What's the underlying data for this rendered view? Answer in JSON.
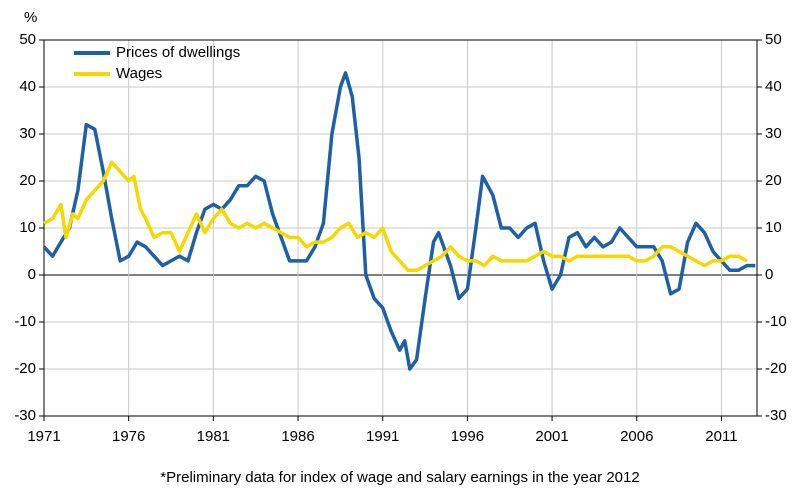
{
  "chart_data": {
    "type": "line",
    "y_label": "%",
    "footnote": "*Preliminary data for index of wage and salary earnings in the year 2012",
    "series": [
      {
        "name": "Prices of dwellings",
        "color": "#1f5fa6",
        "x": [
          1971,
          1971.5,
          1972,
          1972.5,
          1973,
          1973.5,
          1974,
          1974.5,
          1975,
          1975.5,
          1976,
          1976.5,
          1977,
          1977.5,
          1978,
          1978.5,
          1979,
          1979.5,
          1980,
          1980.5,
          1981,
          1981.5,
          1982,
          1982.5,
          1983,
          1983.5,
          1984,
          1984.5,
          1985,
          1985.5,
          1986,
          1986.5,
          1987,
          1987.5,
          1988,
          1988.5,
          1988.8,
          1989.2,
          1989.6,
          1990,
          1990.5,
          1991,
          1991.5,
          1992,
          1992.3,
          1992.6,
          1993,
          1993.5,
          1994,
          1994.3,
          1995,
          1995.5,
          1996,
          1996.5,
          1996.9,
          1997.5,
          1998,
          1998.5,
          1999,
          1999.5,
          2000,
          2000.5,
          2001,
          2001.5,
          2002,
          2002.5,
          2003,
          2003.5,
          2004,
          2004.5,
          2005,
          2005.5,
          2006,
          2006.5,
          2007,
          2007.5,
          2008,
          2008.5,
          2009,
          2009.5,
          2010,
          2010.5,
          2011,
          2011.5,
          2012,
          2012.5,
          2013
        ],
        "values": [
          6,
          4,
          7,
          10,
          18,
          32,
          31,
          22,
          12,
          3,
          4,
          7,
          6,
          4,
          2,
          3,
          4,
          3,
          9,
          14,
          15,
          14,
          16,
          19,
          19,
          21,
          20,
          13,
          8,
          3,
          3,
          3,
          6,
          11,
          30,
          40,
          43,
          38,
          25,
          0,
          -5,
          -7,
          -12,
          -16,
          -14,
          -20,
          -18,
          -5,
          7,
          9,
          2,
          -5,
          -3,
          10,
          21,
          17,
          10,
          10,
          8,
          10,
          11,
          3,
          -3,
          0,
          8,
          9,
          6,
          8,
          6,
          7,
          10,
          8,
          6,
          6,
          6,
          3,
          -4,
          -3,
          7,
          11,
          9,
          5,
          3,
          1,
          1,
          2,
          2
        ]
      },
      {
        "name": "Wages",
        "color": "#f5d800",
        "x": [
          1971,
          1971.5,
          1972,
          1972.3,
          1972.7,
          1973,
          1973.5,
          1974,
          1974.5,
          1975,
          1975.5,
          1976,
          1976.3,
          1976.7,
          1977,
          1977.5,
          1978,
          1978.5,
          1979,
          1979.5,
          1980,
          1980.5,
          1981,
          1981.5,
          1982,
          1982.5,
          1983,
          1983.5,
          1984,
          1984.5,
          1985,
          1985.5,
          1986,
          1986.5,
          1987,
          1987.5,
          1988,
          1988.5,
          1989,
          1989.5,
          1990,
          1990.5,
          1991,
          1991.5,
          1992,
          1992.5,
          1993,
          1993.5,
          1994,
          1994.5,
          1995,
          1995.5,
          1996,
          1996.5,
          1997,
          1997.5,
          1998,
          1998.5,
          1999,
          1999.5,
          2000,
          2000.5,
          2001,
          2001.5,
          2002,
          2002.5,
          2003,
          2003.5,
          2004,
          2004.5,
          2005,
          2005.5,
          2006,
          2006.5,
          2007,
          2007.5,
          2008,
          2008.5,
          2009,
          2009.5,
          2010,
          2010.5,
          2011,
          2011.5,
          2012,
          2012.5
        ],
        "values": [
          11,
          12,
          15,
          8,
          13,
          12,
          16,
          18,
          20,
          24,
          22,
          20,
          21,
          14,
          12,
          8,
          9,
          9,
          5,
          9,
          13,
          9,
          12,
          14,
          11,
          10,
          11,
          10,
          11,
          10,
          9,
          8,
          8,
          6,
          7,
          7,
          8,
          10,
          11,
          8,
          9,
          8,
          10,
          5,
          3,
          1,
          1,
          2,
          3,
          4,
          6,
          4,
          3,
          3,
          2,
          4,
          3,
          3,
          3,
          3,
          4,
          5,
          4,
          4,
          3,
          4,
          4,
          4,
          4,
          4,
          4,
          4,
          3,
          3,
          4,
          6,
          6,
          5,
          4,
          3,
          2,
          3,
          3,
          4,
          4,
          3
        ]
      }
    ],
    "xlim": [
      1971,
      2013.1
    ],
    "xticks": [
      1971,
      1976,
      1981,
      1986,
      1991,
      1996,
      2001,
      2006,
      2011
    ],
    "ylim": [
      -30,
      50
    ],
    "yticks": [
      -30,
      -20,
      -10,
      0,
      10,
      20,
      30,
      40,
      50
    ],
    "y2lim": [
      -30,
      50
    ],
    "y2ticks": [
      -30,
      -20,
      -10,
      0,
      10,
      20,
      30,
      40,
      50
    ],
    "grid": true,
    "legend": "top-left"
  }
}
